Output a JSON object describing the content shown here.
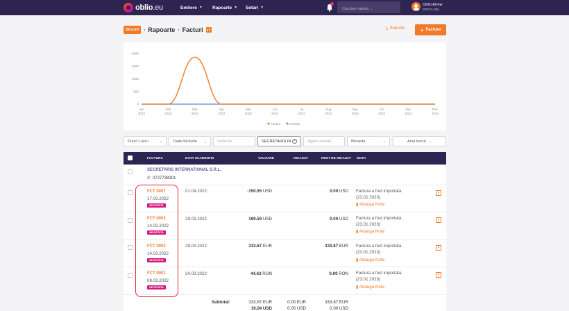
{
  "app": {
    "logo_main": "oblio",
    "logo_suffix": ".eu",
    "nav": [
      {
        "label": "Emitere"
      },
      {
        "label": "Rapoarte"
      },
      {
        "label": "Setari"
      }
    ],
    "search_placeholder": "Cautare rapida ...",
    "user_name": "Oblio Arrow",
    "user_company": "SPETA SRL",
    "accent_color": "#f07a2a",
    "nav_bg_color": "#2e2452"
  },
  "breadcrumb": {
    "home": "Stocuri",
    "items": [
      "Rapoarte",
      "Facturi"
    ]
  },
  "actions": {
    "export_label": "Exporta",
    "add_label": "Factura"
  },
  "chart_data": {
    "type": "line",
    "categories": [
      "Ian 2022",
      "Feb 2022",
      "Mar 2022",
      "Apr 2022",
      "Mai 2022",
      "Iun 2022",
      "Iul 2022",
      "Aug 2022",
      "Sep 2022",
      "Oct 2022",
      "Nov 2022",
      "Dec 2022"
    ],
    "x_ticks": [
      {
        "month": "Ian",
        "year": "2022"
      },
      {
        "month": "Feb",
        "year": "2022"
      },
      {
        "month": "Mar",
        "year": "2022"
      },
      {
        "month": "Apr",
        "year": "2022"
      },
      {
        "month": "Mai",
        "year": "2022"
      },
      {
        "month": "Iun",
        "year": "2022"
      },
      {
        "month": "Iul",
        "year": "2022"
      },
      {
        "month": "Aug",
        "year": "2022"
      },
      {
        "month": "Sep",
        "year": "2022"
      },
      {
        "month": "Oct",
        "year": "2022"
      },
      {
        "month": "Nov",
        "year": "2022"
      },
      {
        "month": "Dec",
        "year": "2022"
      }
    ],
    "y_ticks": [
      "0",
      "500",
      "1000",
      "1500",
      "2000"
    ],
    "ylim": [
      0,
      2000
    ],
    "series": [
      {
        "name": "Facturi",
        "color": "#f0883e",
        "values": [
          0,
          0,
          1850,
          0,
          0,
          0,
          0,
          0,
          0,
          0,
          0,
          0
        ]
      },
      {
        "name": "Incasat",
        "color": "#6f9ed6",
        "values": [
          0,
          0,
          0,
          0,
          0,
          0,
          0,
          0,
          0,
          0,
          0,
          0
        ]
      }
    ],
    "legend_position": "bottom-center",
    "grid": false
  },
  "filters": {
    "punct_lucru": "Punct Lucru",
    "tip_factura": "Toate facturile",
    "serie_placeholder": "Serie+nr",
    "client_value": "SECRETARIS IN",
    "agent_placeholder": "Agent vanzari",
    "moneda": "Moneda",
    "perioada": "Anul trecut"
  },
  "table": {
    "headers": {
      "factura": "FACTURA",
      "scadenta": "DATA SCADENTEI",
      "valoare": "VALOARE",
      "incasat": "INCASAT",
      "rest": "REST DE INCASAT",
      "nota": "NOTA"
    },
    "client": {
      "name": "SECRETARIS INTERNATIONAL S.R.L.",
      "phone": "0727738301"
    },
    "rows": [
      {
        "number": "FCT 0007",
        "date": "17.03.2022",
        "badge": "IMPORTATA",
        "due": "01.04.2022",
        "value": "-150.55",
        "value_cur": "USD",
        "paid": "",
        "paid_cur": "",
        "rest": "0.00",
        "rest_cur": "USD",
        "note1": "Factura a fost importata.",
        "note2": "(23.01.2023)",
        "note_link": "Adauga Nota"
      },
      {
        "number": "FCT 0003",
        "date": "14.03.2022",
        "badge": "IMPORTATA",
        "due": "29.03.2022",
        "value": "169.59",
        "value_cur": "USD",
        "paid": "",
        "paid_cur": "",
        "rest": "0.00",
        "rest_cur": "USD",
        "note1": "Factura a fost importata.",
        "note2": "(23.01.2023)",
        "note_link": "Adauga Nota"
      },
      {
        "number": "FCT 0002",
        "date": "14.03.2022",
        "badge": "IMPORTATA",
        "due": "29.03.2022",
        "value": "333.87",
        "value_cur": "EUR",
        "paid": "",
        "paid_cur": "",
        "rest": "333.87",
        "rest_cur": "EUR",
        "note1": "Factura a fost importata.",
        "note2": "(23.01.2023)",
        "note_link": "Adauga Nota"
      },
      {
        "number": "FCT 0001",
        "date": "09.03.2022",
        "badge": "IMPORTATA",
        "due": "24.03.2022",
        "value": "44.63",
        "value_cur": "RON",
        "paid": "",
        "paid_cur": "",
        "rest": "0.00",
        "rest_cur": "RON",
        "note1": "Factura a fost importata.",
        "note2": "(23.01.2023)",
        "note_link": "Adauga Nota"
      }
    ],
    "subtotal": {
      "label": "Subtotal:",
      "value1": "333.87 EUR",
      "paid1": "0.00 EUR",
      "rest1": "333.87 EUR",
      "value2": "19.04 USD",
      "paid2": "0.00 USD",
      "rest2": "0.00 USD"
    }
  }
}
